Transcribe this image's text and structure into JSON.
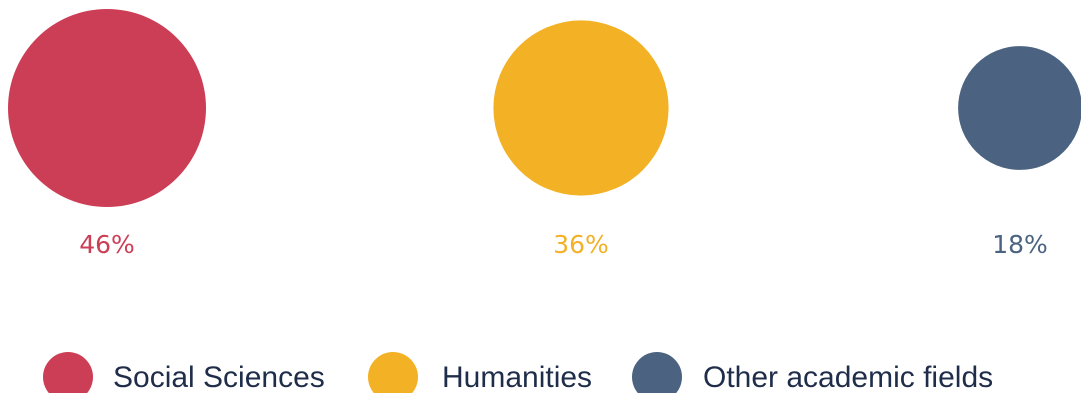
{
  "chart_data": {
    "type": "bubble",
    "series": [
      {
        "name": "Social Sciences",
        "value": 46,
        "label": "46%",
        "color": "#cc3e55"
      },
      {
        "name": "Humanities",
        "value": 36,
        "label": "36%",
        "color": "#f3b125"
      },
      {
        "name": "Other academic fields",
        "value": 18,
        "label": "18%",
        "color": "#4b6280"
      }
    ],
    "legend_position": "bottom",
    "grid": false
  },
  "colors": {
    "legend_text": "#1f2d4a",
    "background": "#ffffff"
  }
}
